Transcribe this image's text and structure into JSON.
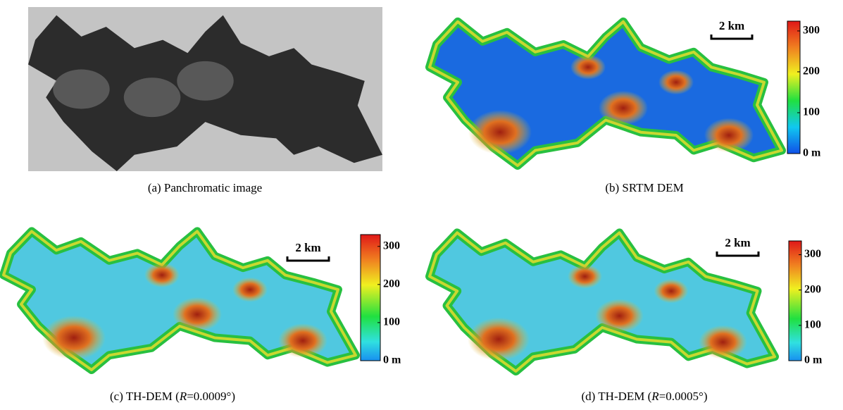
{
  "panels": [
    {
      "caption": [
        "(a) Panchromatic image"
      ]
    },
    {
      "caption": [
        "(b) SRTM DEM"
      ],
      "scale_bar": "2 km",
      "colorbar": {
        "range": [
          0,
          324
        ],
        "ticks": [
          {
            "value": 0,
            "label": "0 m"
          },
          100,
          200,
          300
        ]
      }
    },
    {
      "caption": [
        "(c) TH-DEM (",
        "R",
        "=0.0009°)"
      ],
      "scale_bar": "2 km",
      "colorbar": {
        "range": [
          0,
          331
        ],
        "ticks": [
          {
            "value": 0,
            "label": "0 m"
          },
          100,
          200,
          300
        ]
      }
    },
    {
      "caption": [
        "(d) TH-DEM (",
        "R",
        "=0.0005°)"
      ],
      "scale_bar": "2 km",
      "colorbar": {
        "range": [
          0,
          339
        ],
        "ticks": [
          {
            "value": 0,
            "label": "0 m"
          },
          100,
          200,
          300
        ]
      }
    }
  ]
}
